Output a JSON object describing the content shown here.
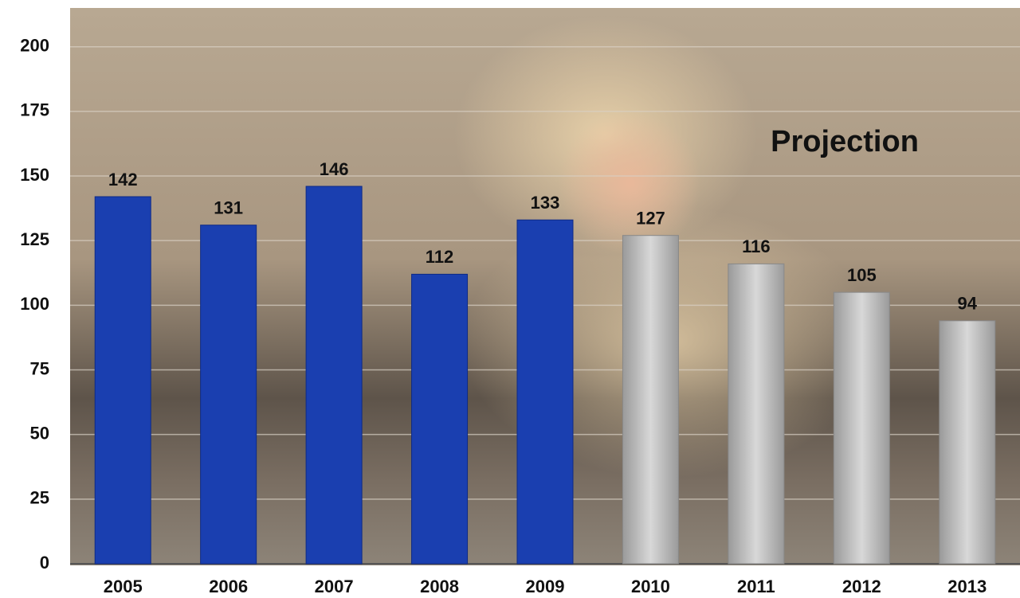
{
  "chart_data": {
    "type": "bar",
    "categories": [
      "2005",
      "2006",
      "2007",
      "2008",
      "2009",
      "2010",
      "2011",
      "2012",
      "2013"
    ],
    "values": [
      142,
      131,
      146,
      112,
      133,
      127,
      116,
      105,
      94
    ],
    "colors": [
      "#1a3fb0",
      "#1a3fb0",
      "#1a3fb0",
      "#1a3fb0",
      "#1a3fb0",
      "#b8b8b8",
      "#b8b8b8",
      "#b8b8b8",
      "#b8b8b8"
    ],
    "annotation": "Projection",
    "ylim": [
      0,
      215
    ],
    "yticks": [
      0,
      25,
      50,
      75,
      100,
      125,
      150,
      175,
      200
    ],
    "grid": true
  }
}
